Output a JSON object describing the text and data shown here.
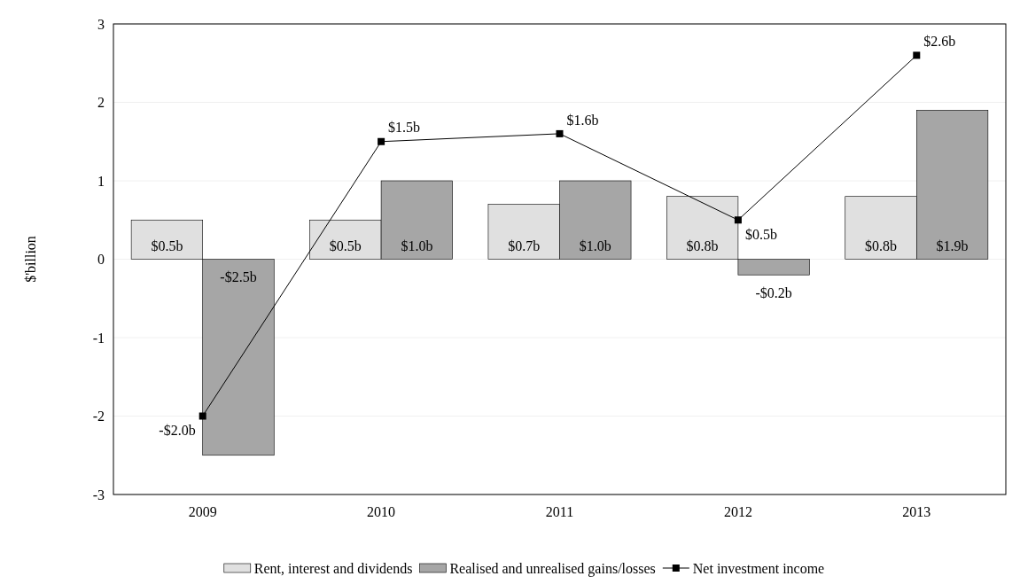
{
  "chart_data": {
    "type": "bar",
    "ylabel": "$'billion",
    "categories": [
      "2009",
      "2010",
      "2011",
      "2012",
      "2013"
    ],
    "ylim": [
      -3,
      3
    ],
    "yticks": [
      -3,
      -2,
      -1,
      0,
      1,
      2,
      3
    ],
    "grid": "y",
    "legend": "bottom",
    "series": [
      {
        "name": "Rent, interest and dividends",
        "color": "#e0e0e0",
        "values": [
          0.5,
          0.5,
          0.7,
          0.8,
          0.8
        ],
        "value_labels": [
          "$0.5b",
          "$0.5b",
          "$0.7b",
          "$0.8b",
          "$0.8b"
        ]
      },
      {
        "name": "Realised and unrealised gains/losses",
        "color": "#a6a6a6",
        "values": [
          -2.5,
          1.0,
          1.0,
          -0.2,
          1.9
        ],
        "value_labels": [
          "-$2.5b",
          "$1.0b",
          "$1.0b",
          "-$0.2b",
          "$1.9b"
        ]
      },
      {
        "name": "Net investment income",
        "type": "line",
        "color": "#000000",
        "marker": "square",
        "values": [
          -2.0,
          1.5,
          1.6,
          0.5,
          2.6
        ],
        "value_labels": [
          "-$2.0b",
          "$1.5b",
          "$1.6b",
          "$0.5b",
          "$2.6b"
        ]
      }
    ]
  }
}
